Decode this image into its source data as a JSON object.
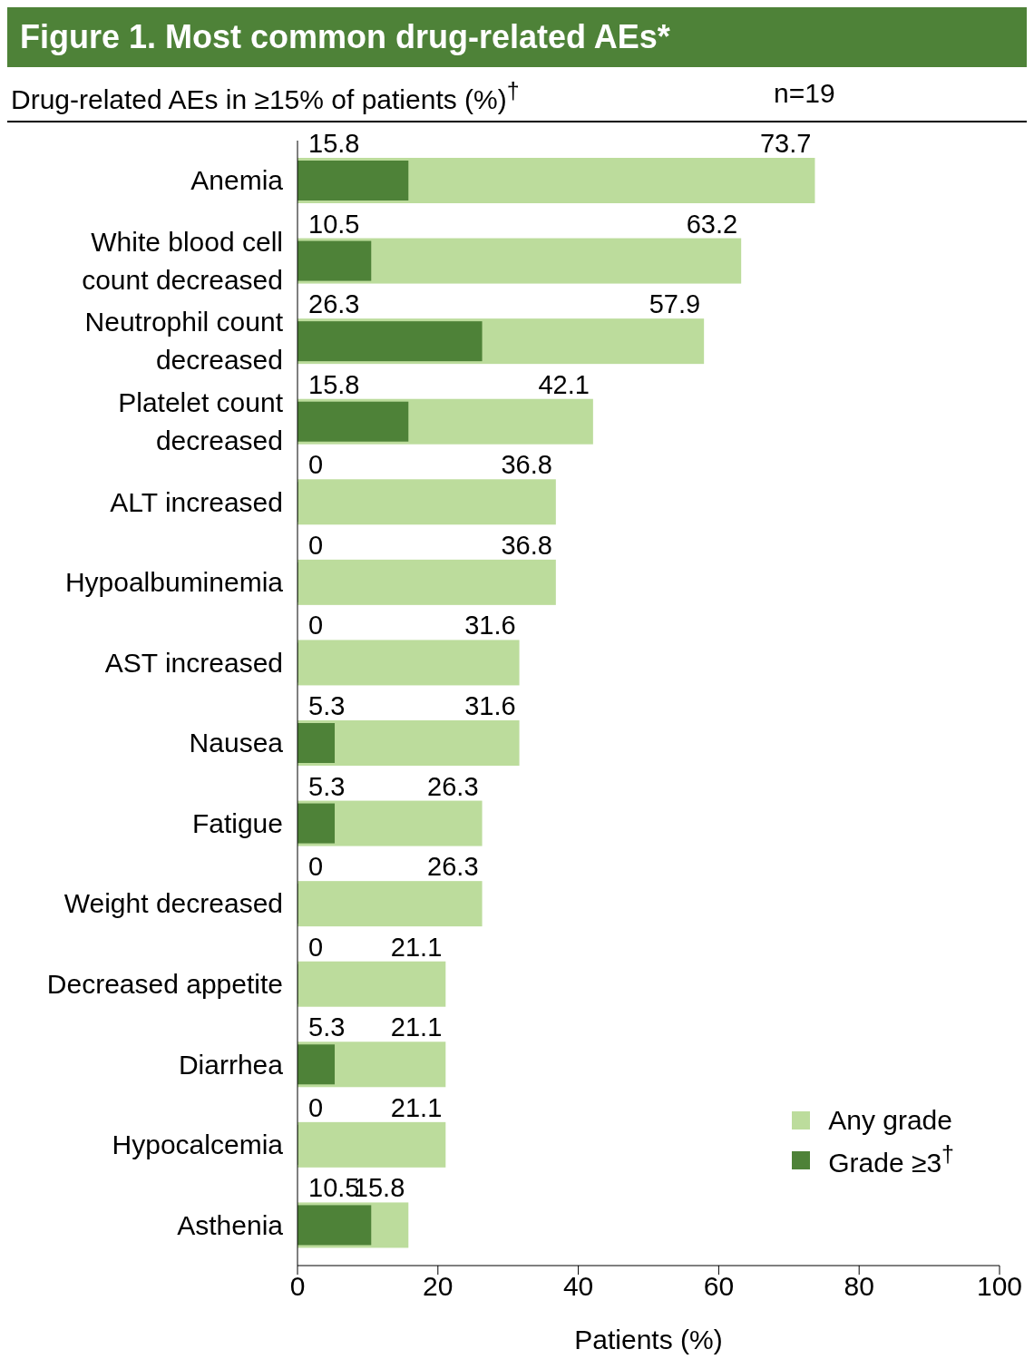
{
  "chart_data": {
    "type": "bar",
    "orientation": "horizontal",
    "title": "Figure 1. Most common drug-related AEs*",
    "subtitle": "Drug-related AEs in ≥15% of patients (%)$^{†}$",
    "annotations": [
      "n=19"
    ],
    "categories": [
      "Anemia",
      "White blood cell count decreased",
      "Neutrophil count decreased",
      "Platelet count decreased",
      "ALT increased",
      "Hypoalbuminemia",
      "AST increased",
      "Nausea",
      "Fatigue",
      "Weight decreased",
      "Decreased appetite",
      "Diarrhea",
      "Hypocalcemia",
      "Asthenia"
    ],
    "series": [
      {
        "name": "Any grade",
        "color": "#bcdc9c",
        "values": [
          73.7,
          63.2,
          57.9,
          42.1,
          36.8,
          36.8,
          31.6,
          31.6,
          26.3,
          26.3,
          21.1,
          21.1,
          21.1,
          15.8
        ]
      },
      {
        "name": "Grade ≥3$^{†}$",
        "color": "#4e8238",
        "values": [
          15.8,
          10.5,
          26.3,
          15.8,
          0,
          0,
          0,
          5.3,
          5.3,
          0,
          0,
          5.3,
          0,
          10.5
        ]
      }
    ],
    "xlabel": "Patients (%)",
    "xlim": [
      0,
      100
    ],
    "xticks": [
      0,
      20,
      40,
      60,
      80,
      100
    ],
    "grid": false,
    "legend": "bottom right",
    "data_labels": true
  }
}
